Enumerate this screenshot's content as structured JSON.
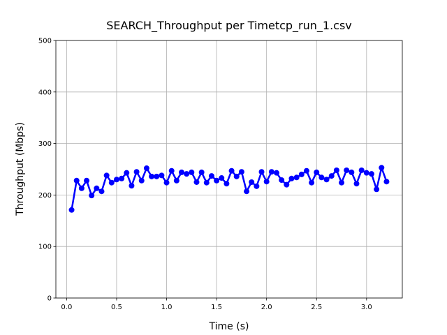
{
  "chart_data": {
    "type": "line",
    "title": "SEARCH_Throughput per Timetcp_run_1.csv",
    "x_label": "Time (s)",
    "y_label": "Throughput (Mbps)",
    "x": [
      0.05,
      0.1,
      0.15,
      0.2,
      0.25,
      0.3,
      0.35,
      0.4,
      0.45,
      0.5,
      0.55,
      0.6,
      0.65,
      0.7,
      0.75,
      0.8,
      0.85,
      0.9,
      0.95,
      1.0,
      1.05,
      1.1,
      1.15,
      1.2,
      1.25,
      1.3,
      1.35,
      1.4,
      1.45,
      1.5,
      1.55,
      1.6,
      1.65,
      1.7,
      1.75,
      1.8,
      1.85,
      1.9,
      1.95,
      2.0,
      2.05,
      2.1,
      2.15,
      2.2,
      2.25,
      2.3,
      2.35,
      2.4,
      2.45,
      2.5,
      2.55,
      2.6,
      2.65,
      2.7,
      2.75,
      2.8,
      2.85,
      2.9,
      2.95,
      3.0,
      3.05,
      3.1,
      3.15,
      3.2
    ],
    "series": [
      {
        "name": "Throughput",
        "color": "#0000ff",
        "values": [
          171,
          228,
          213,
          228,
          199,
          213,
          207,
          238,
          224,
          230,
          232,
          243,
          218,
          245,
          228,
          252,
          236,
          236,
          238,
          224,
          247,
          228,
          244,
          241,
          244,
          225,
          244,
          224,
          237,
          228,
          233,
          222,
          247,
          236,
          245,
          207,
          225,
          217,
          245,
          226,
          245,
          243,
          229,
          220,
          232,
          234,
          240,
          247,
          224,
          244,
          234,
          230,
          237,
          248,
          224,
          248,
          244,
          222,
          248,
          243,
          241,
          211,
          253,
          226
        ]
      }
    ],
    "xlim": [
      -0.1075,
      3.3575
    ],
    "xticks": [
      {
        "value": 0,
        "label": "0.0"
      },
      0.5,
      {
        "value": 1,
        "label": "1.0"
      },
      1.5,
      {
        "value": 2,
        "label": "2.0"
      },
      2.5,
      {
        "value": 3,
        "label": "3.0"
      }
    ],
    "ylim": [
      0,
      500
    ],
    "yticks": [
      0,
      100,
      200,
      300,
      400,
      500
    ],
    "grid": true
  }
}
